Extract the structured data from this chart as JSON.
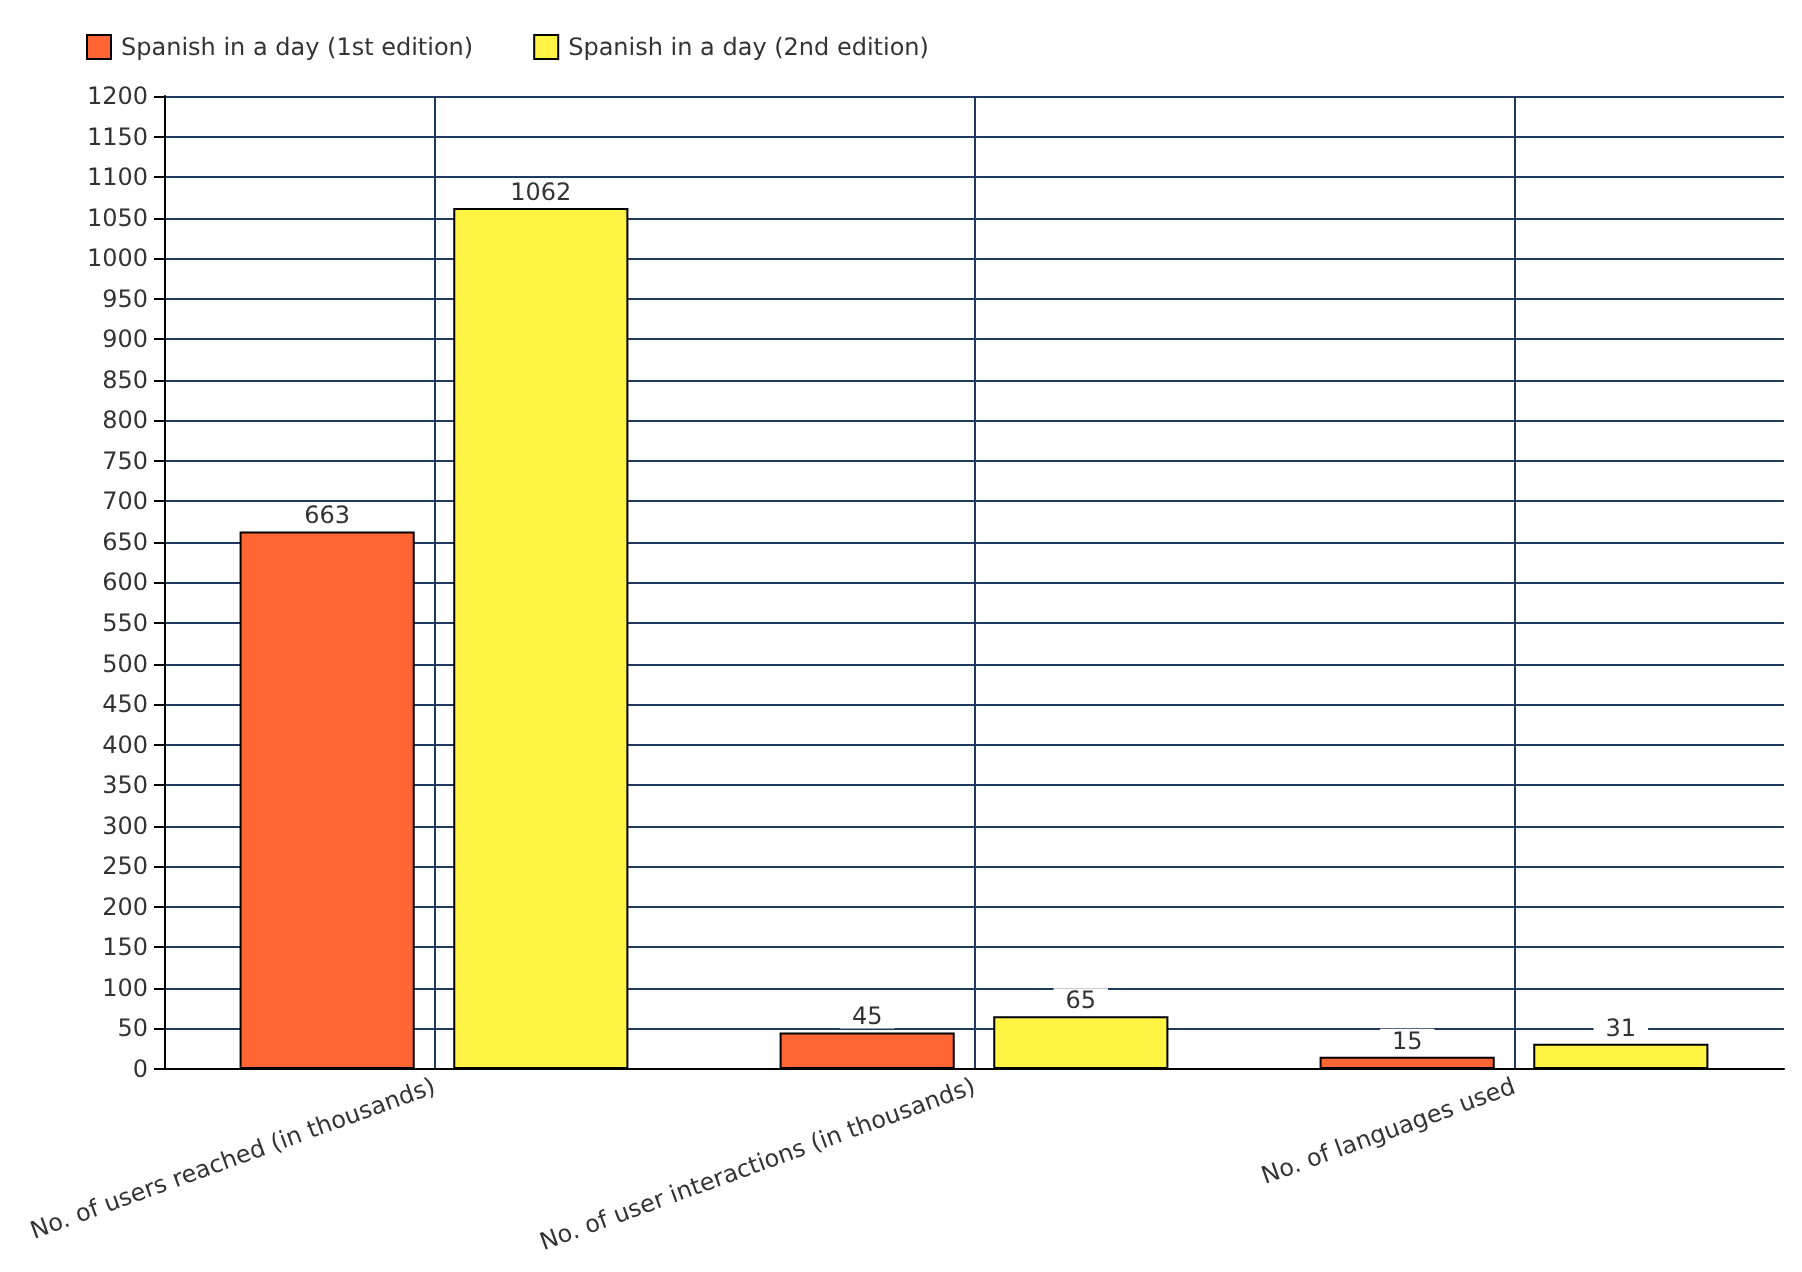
{
  "chart_data": {
    "type": "bar",
    "categories": [
      "No. of users reached (in thousands)",
      "No. of user interactions (in thousands)",
      "No. of languages used"
    ],
    "series": [
      {
        "name": "Spanish in a day (1st edition)",
        "color": "#ff6633",
        "values": [
          663,
          45,
          15
        ]
      },
      {
        "name": "Spanish in a day (2nd edition)",
        "color": "#fff444",
        "values": [
          1062,
          65,
          31
        ]
      }
    ],
    "ylim": [
      0,
      1200
    ],
    "yticks": [
      0,
      50,
      100,
      150,
      200,
      250,
      300,
      350,
      400,
      450,
      500,
      550,
      600,
      650,
      700,
      750,
      800,
      850,
      900,
      950,
      1000,
      1050,
      1100,
      1150,
      1200
    ],
    "grid": true,
    "legend": "top left",
    "data_labels": true
  }
}
